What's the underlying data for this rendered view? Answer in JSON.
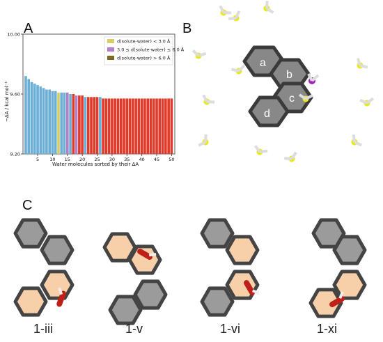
{
  "panels": {
    "A": "A",
    "B": "B",
    "C": "C"
  },
  "chart_data": {
    "type": "bar",
    "ylabel": "−ΔA / kcal mol⁻¹",
    "xlabel": "Water molecules sorted by their ΔA",
    "ylim": [
      9.2,
      10.0
    ],
    "yticks": [
      "10.00",
      "9.60",
      "9.20"
    ],
    "ytick_values": [
      10.0,
      9.6,
      9.2
    ],
    "xticks": [
      "5",
      "10",
      "15",
      "20",
      "25",
      "30",
      "35",
      "40",
      "45",
      "50"
    ],
    "legend": [
      {
        "label": "d(solute-water) < 3.0 Å",
        "color": "#d6cc6a"
      },
      {
        "label": "3.0 ≤ d(solute-water) ≤ 6.0 Å",
        "color": "#b57fc8"
      },
      {
        "label": "d(solute-water) > 6.0 Å",
        "color": "#7a6a28"
      }
    ],
    "values": [
      9.72,
      9.7,
      9.68,
      9.67,
      9.66,
      9.65,
      9.64,
      9.63,
      9.63,
      9.62,
      9.62,
      9.61,
      9.61,
      9.61,
      9.61,
      9.6,
      9.6,
      9.59,
      9.59,
      9.59,
      9.58,
      9.58,
      9.58,
      9.58,
      9.58,
      9.58,
      9.57,
      9.57,
      9.57,
      9.57,
      9.57,
      9.57,
      9.57,
      9.57,
      9.57,
      9.57,
      9.57,
      9.57,
      9.57,
      9.57,
      9.57,
      9.57,
      9.57,
      9.57,
      9.57,
      9.57,
      9.57,
      9.57,
      9.57,
      9.57
    ],
    "bar_colors": [
      "#6baed6",
      "#6baed6",
      "#6baed6",
      "#6baed6",
      "#6baed6",
      "#6baed6",
      "#6baed6",
      "#6baed6",
      "#6baed6",
      "#6baed6",
      "#6baed6",
      "#d6cc6a",
      "#6baed6",
      "#6baed6",
      "#b57fc8",
      "#6baed6",
      "#e03a2a",
      "#b57fc8",
      "#e03a2a",
      "#e03a2a",
      "#6baed6",
      "#e03a2a",
      "#e03a2a",
      "#e03a2a",
      "#e03a2a",
      "#6baed6",
      "#e03a2a",
      "#e03a2a",
      "#e03a2a",
      "#e03a2a",
      "#e03a2a",
      "#e03a2a",
      "#e03a2a",
      "#e03a2a",
      "#e03a2a",
      "#e03a2a",
      "#e03a2a",
      "#e03a2a",
      "#e03a2a",
      "#e03a2a",
      "#e03a2a",
      "#e03a2a",
      "#e03a2a",
      "#e03a2a",
      "#e03a2a",
      "#e03a2a",
      "#e03a2a",
      "#e03a2a",
      "#e03a2a",
      "#e03a2a"
    ]
  },
  "figureB": {
    "ring_labels": [
      "a",
      "b",
      "c",
      "d"
    ]
  },
  "figureC": {
    "labels": [
      "1-iii",
      "1-v",
      "1-vi",
      "1-xi"
    ]
  },
  "colors": {
    "ring_gray": "#777777",
    "ring_orange": "#f6c89a",
    "water_yellow": "#e8e81a",
    "water_red": "#c0201a",
    "water_purple": "#a020c0"
  }
}
